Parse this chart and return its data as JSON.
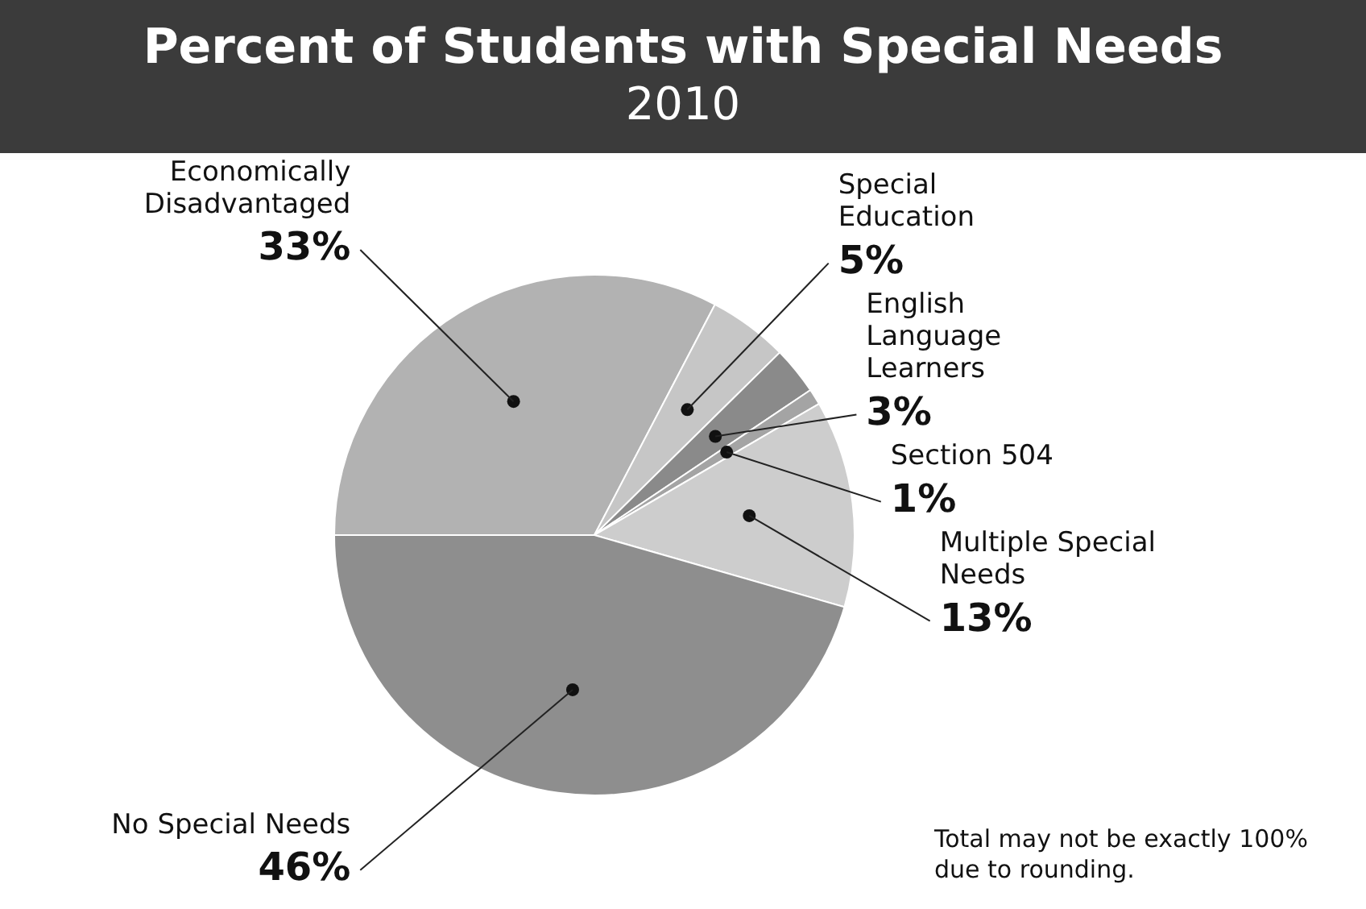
{
  "chart_data": {
    "type": "pie",
    "title": "Percent of Students with Special Needs",
    "subtitle": "2010",
    "categories": [
      "Economically Disadvantaged",
      "Special Education",
      "English Language Learners",
      "Section 504",
      "Multiple Special Needs",
      "No Special Needs"
    ],
    "values": [
      33,
      5,
      3,
      1,
      13,
      46
    ],
    "value_labels": [
      "33%",
      "5%",
      "3%",
      "1%",
      "13%",
      "46%"
    ],
    "colors": [
      "#b2b2b2",
      "#c6c6c6",
      "#8a8a8a",
      "#a4a4a4",
      "#cdcdcd",
      "#8e8e8e"
    ],
    "annotations": [
      "Total may not be exactly 100% due to rounding."
    ],
    "legend": false
  }
}
